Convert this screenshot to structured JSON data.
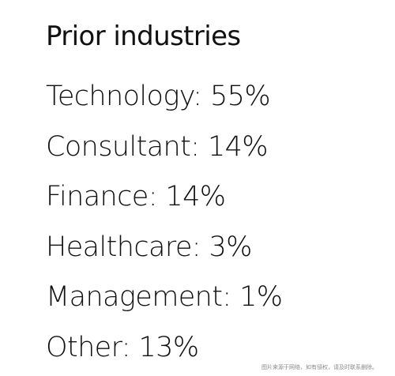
{
  "title": "Prior industries",
  "items": [
    "Technology: 55%",
    "Consultant: 14%",
    "Finance: 14%",
    "Healthcare: 3%",
    "Management: 1%",
    "Other: 13%"
  ],
  "watermark": "图片来源于网络，如有侵权，请及时联系删除。"
}
